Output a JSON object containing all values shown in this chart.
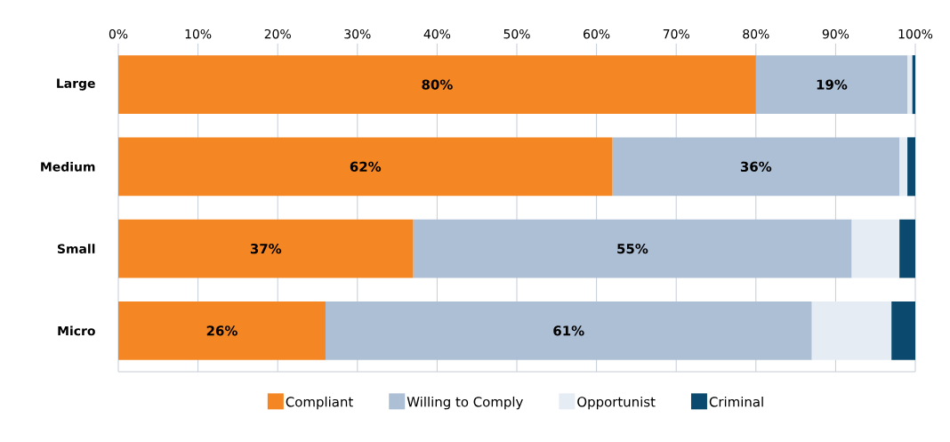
{
  "chart_data": {
    "type": "bar",
    "orientation": "horizontal",
    "stacked": true,
    "categories": [
      "Large",
      "Medium",
      "Small",
      "Micro"
    ],
    "series": [
      {
        "name": "Compliant",
        "color": "#f48723",
        "values": [
          80,
          62,
          37,
          26
        ],
        "value_labels": [
          "80%",
          "62%",
          "37%",
          "26%"
        ]
      },
      {
        "name": "Willing to Comply",
        "color": "#adbfd5",
        "values": [
          19,
          36,
          55,
          61
        ],
        "value_labels": [
          "19%",
          "36%",
          "55%",
          "61%"
        ]
      },
      {
        "name": "Opportunist",
        "color": "#e6ecf4",
        "values": [
          0.6,
          1,
          6,
          10
        ]
      },
      {
        "name": "Criminal",
        "color": "#0b4a6e",
        "values": [
          0.4,
          1,
          2,
          3
        ]
      }
    ],
    "xlim": [
      0,
      100
    ],
    "xticks": [
      {
        "value": 0,
        "label": "0%"
      },
      {
        "value": 10,
        "label": "10%"
      },
      {
        "value": 20,
        "label": "20%"
      },
      {
        "value": 30,
        "label": "30%"
      },
      {
        "value": 40,
        "label": "40%"
      },
      {
        "value": 50,
        "label": "50%"
      },
      {
        "value": 60,
        "label": "60%"
      },
      {
        "value": 70,
        "label": "70%"
      },
      {
        "value": 80,
        "label": "80%"
      },
      {
        "value": 90,
        "label": "90%"
      },
      {
        "value": 100,
        "label": "100%"
      }
    ],
    "grid": "x",
    "legend": "bottom"
  }
}
